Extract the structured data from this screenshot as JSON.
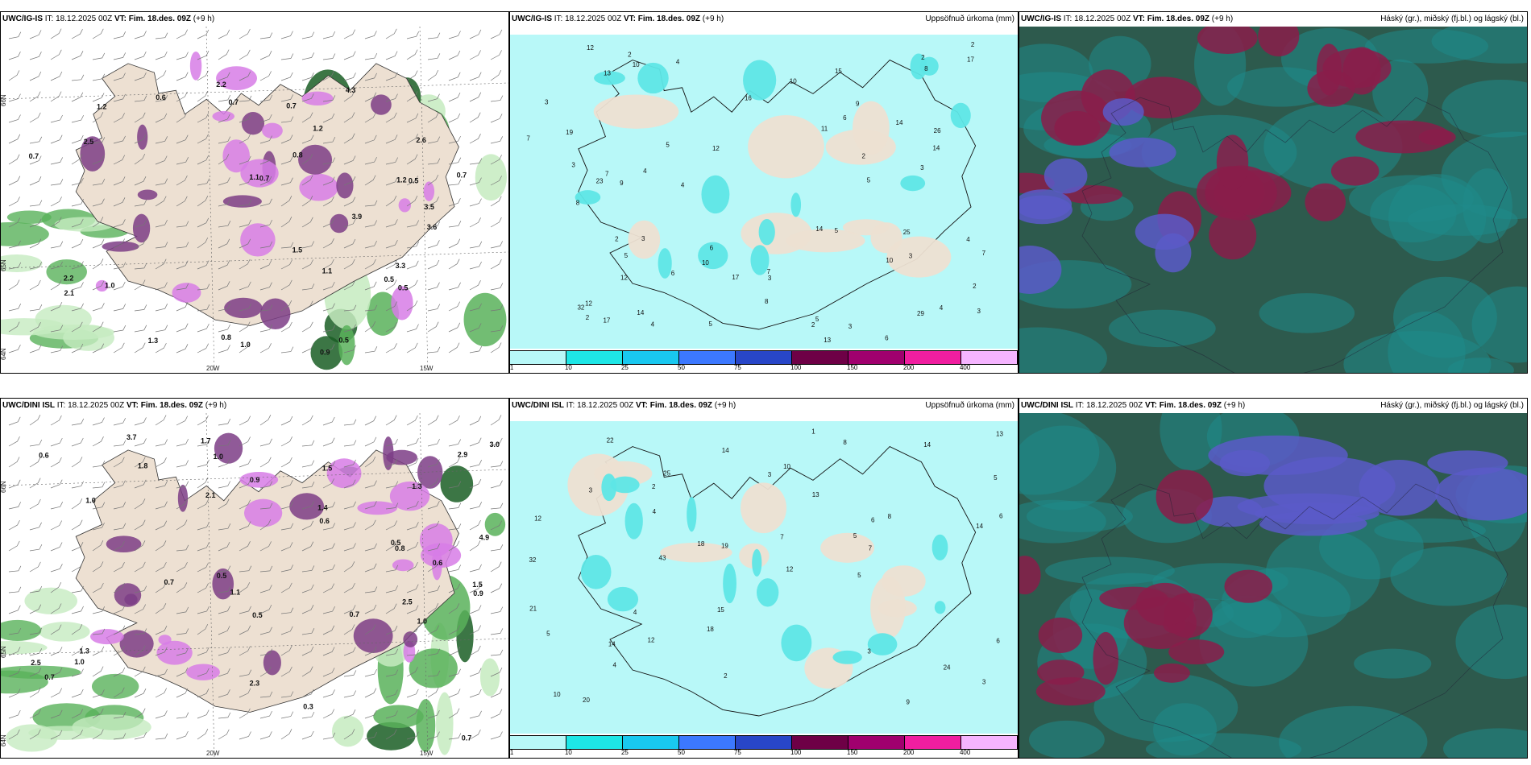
{
  "colors": {
    "land": "#ede0d2",
    "precip_light": "#b8f8f8",
    "precip_mid": "#5ee6e6",
    "green_light": "#c6ebc0",
    "green_mid": "#59b25a",
    "green_dark": "#1a5e25",
    "purple_light": "#d77de6",
    "purple_dark": "#7d3d86",
    "cloud_high": "#8a1d4a",
    "cloud_mid": "#1f8a8a",
    "cloud_low": "#2d5a4d",
    "cloud_blue": "#5a5ac8"
  },
  "panels": {
    "ig_wind": {
      "model": "UWC/IG-IS",
      "it_label": "IT:",
      "it_value": "18.12.2025 00Z",
      "vt_label": "VT:",
      "vt_value": "Fim. 18.des. 09Z",
      "lead": "(+9 h)",
      "lon_labels": [
        "20W",
        "15W"
      ],
      "lat_labels": [
        "66N",
        "65N",
        "64N"
      ],
      "values": [
        "2.2",
        "1.5",
        "0.8",
        "1.2",
        "0.7",
        "0.5",
        "3.3",
        "2.2",
        "1.3",
        "0.9",
        "0.5",
        "1.0",
        "0.7",
        "0.8",
        "3.6",
        "0.6",
        "2.5",
        "1.1",
        "0.5",
        "4.3",
        "3.5",
        "1.2",
        "0.7",
        "2.6",
        "3.9",
        "2.1",
        "0.7",
        "0.5",
        "1.2",
        "0.7",
        "1.1",
        "1.0"
      ]
    },
    "ig_precip": {
      "model": "UWC/IG-IS",
      "it_label": "IT:",
      "it_value": "18.12.2025 00Z",
      "vt_label": "VT:",
      "vt_value": "Fim. 18.des. 09Z",
      "lead": "(+9 h)",
      "title": "Uppsöfnuð úrkoma (mm)",
      "values": [
        "3",
        "6",
        "4",
        "5",
        "2",
        "12",
        "26",
        "32",
        "10",
        "17",
        "17",
        "2",
        "14",
        "3",
        "7",
        "10",
        "3",
        "5",
        "8",
        "2",
        "4",
        "6",
        "3",
        "2",
        "7",
        "5",
        "4",
        "9",
        "13",
        "3",
        "5",
        "8",
        "7",
        "2",
        "4",
        "13",
        "12",
        "14",
        "15",
        "16",
        "19",
        "25",
        "29",
        "23",
        "17",
        "11",
        "10",
        "6",
        "2",
        "4",
        "8",
        "14",
        "3",
        "5",
        "7",
        "9",
        "3",
        "2",
        "4",
        "12",
        "3",
        "6",
        "5",
        "2",
        "10",
        "14",
        "12"
      ],
      "scale": [
        "1",
        "10",
        "25",
        "50",
        "75",
        "100",
        "150",
        "200",
        "400"
      ],
      "scale_colors": [
        "#b8f8f8",
        "#1ee6e6",
        "#19c8f0",
        "#3c78ff",
        "#2846c8",
        "#6e0046",
        "#a0006e",
        "#f01ea0",
        "#f5b4ff"
      ]
    },
    "ig_cloud": {
      "model": "UWC/IG-IS",
      "it_label": "IT:",
      "it_value": "18.12.2025 00Z",
      "vt_label": "VT:",
      "vt_value": "Fim. 18.des. 09Z",
      "lead": "(+9 h)",
      "title": "Háský (gr.), miðský (fj.bl.) og lágský (bl.)"
    },
    "dini_wind": {
      "model": "UWC/DINI ISL",
      "it_label": "IT:",
      "it_value": "18.12.2025 00Z",
      "vt_label": "VT:",
      "vt_value": "Fim. 18.des. 09Z",
      "lead": "(+9 h)",
      "lon_labels": [
        "20W",
        "15W"
      ],
      "lat_labels": [
        "66N",
        "65N",
        "64N"
      ],
      "values": [
        "1.5",
        "1.3",
        "1.0",
        "2.3",
        "0.5",
        "1.7",
        "3.0",
        "2.5",
        "1.0",
        "0.9",
        "0.6",
        "1.1",
        "0.7",
        "3.7",
        "1.4",
        "0.5",
        "2.9",
        "2.5",
        "1.8",
        "0.7",
        "4.9",
        "0.6",
        "1.5",
        "0.8",
        "0.5",
        "0.9",
        "1.3",
        "0.7",
        "2.1",
        "1.0",
        "0.7",
        "0.3",
        "0.6",
        "1.0"
      ]
    },
    "dini_precip": {
      "model": "UWC/DINI ISL",
      "it_label": "IT:",
      "it_value": "18.12.2025 00Z",
      "vt_label": "VT:",
      "vt_value": "Fim. 18.des. 09Z",
      "lead": "(+9 h)",
      "title": "Uppsöfnuð úrkoma (mm)",
      "values": [
        "4",
        "5",
        "6",
        "14",
        "43",
        "32",
        "12",
        "14",
        "20",
        "18",
        "10",
        "8",
        "7",
        "4",
        "5",
        "3",
        "3",
        "15",
        "14",
        "13",
        "12",
        "19",
        "22",
        "24",
        "25",
        "21",
        "13",
        "18",
        "14",
        "8",
        "12",
        "6",
        "5",
        "7",
        "9",
        "3",
        "2",
        "1",
        "4",
        "10",
        "6",
        "2",
        "5",
        "3"
      ],
      "scale": [
        "1",
        "10",
        "25",
        "50",
        "75",
        "100",
        "150",
        "200",
        "400"
      ],
      "scale_colors": [
        "#b8f8f8",
        "#1ee6e6",
        "#19c8f0",
        "#3c78ff",
        "#2846c8",
        "#6e0046",
        "#a0006e",
        "#f01ea0",
        "#f5b4ff"
      ]
    },
    "dini_cloud": {
      "model": "UWC/DINI ISL",
      "it_label": "IT:",
      "it_value": "18.12.2025 00Z",
      "vt_label": "VT:",
      "vt_value": "Fim. 18.des. 09Z",
      "lead": "(+9 h)",
      "title": "Háský (gr.), miðský (fj.bl.) og lágský (bl.)"
    }
  }
}
